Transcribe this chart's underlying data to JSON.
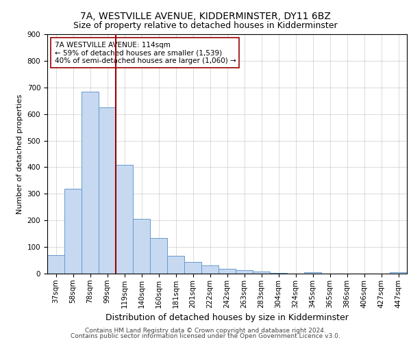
{
  "title": "7A, WESTVILLE AVENUE, KIDDERMINSTER, DY11 6BZ",
  "subtitle": "Size of property relative to detached houses in Kidderminster",
  "xlabel": "Distribution of detached houses by size in Kidderminster",
  "ylabel": "Number of detached properties",
  "categories": [
    "37sqm",
    "58sqm",
    "78sqm",
    "99sqm",
    "119sqm",
    "140sqm",
    "160sqm",
    "181sqm",
    "201sqm",
    "222sqm",
    "242sqm",
    "263sqm",
    "283sqm",
    "304sqm",
    "324sqm",
    "345sqm",
    "365sqm",
    "386sqm",
    "406sqm",
    "427sqm",
    "447sqm"
  ],
  "values": [
    70,
    320,
    685,
    625,
    410,
    207,
    135,
    68,
    45,
    32,
    18,
    12,
    8,
    2,
    0,
    5,
    0,
    0,
    0,
    0,
    5
  ],
  "bar_color": "#c6d9f1",
  "bar_edge_color": "#6699cc",
  "vline_position": 3.5,
  "vline_color": "#990000",
  "annotation_text": "7A WESTVILLE AVENUE: 114sqm\n← 59% of detached houses are smaller (1,539)\n40% of semi-detached houses are larger (1,060) →",
  "annotation_box_color": "#ffffff",
  "annotation_box_edge_color": "#990000",
  "ylim": [
    0,
    900
  ],
  "yticks": [
    0,
    100,
    200,
    300,
    400,
    500,
    600,
    700,
    800,
    900
  ],
  "footer_line1": "Contains HM Land Registry data © Crown copyright and database right 2024.",
  "footer_line2": "Contains public sector information licensed under the Open Government Licence v3.0.",
  "title_fontsize": 10,
  "subtitle_fontsize": 9,
  "xlabel_fontsize": 9,
  "ylabel_fontsize": 8,
  "footer_fontsize": 6.5,
  "tick_fontsize": 7.5,
  "annotation_fontsize": 7.5,
  "grid_color": "#cccccc",
  "background_color": "#ffffff"
}
